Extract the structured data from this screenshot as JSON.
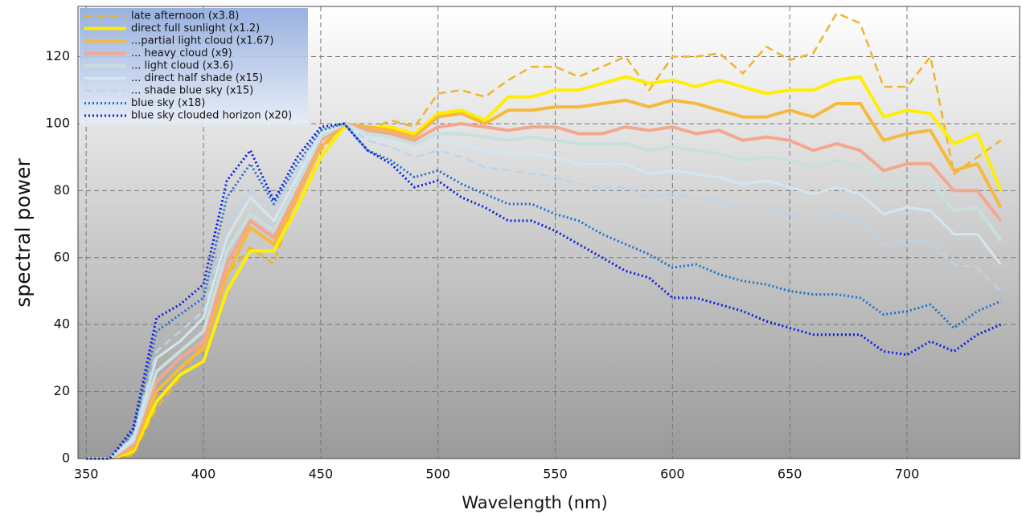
{
  "chart_data": {
    "type": "line",
    "xlabel": "Wavelength (nm)",
    "ylabel": "spectral power",
    "xlim": [
      346.5,
      748
    ],
    "ylim": [
      0,
      135
    ],
    "xticks": [
      350,
      400,
      450,
      500,
      550,
      600,
      650,
      700
    ],
    "yticks": [
      0,
      20,
      40,
      60,
      80,
      100,
      120
    ],
    "grid": true,
    "legend": "upper left",
    "x": [
      350,
      360,
      370,
      380,
      390,
      400,
      410,
      420,
      430,
      440,
      450,
      460,
      470,
      480,
      490,
      500,
      510,
      520,
      530,
      540,
      550,
      560,
      570,
      580,
      590,
      600,
      610,
      620,
      630,
      640,
      650,
      660,
      670,
      680,
      690,
      700,
      710,
      720,
      730,
      740
    ],
    "series": [
      {
        "name": "late afternoon (x3.8)",
        "color": "#f0b429",
        "dash": "dashed",
        "width": 2.5,
        "values": [
          0,
          0,
          1,
          15,
          24,
          35,
          55,
          63,
          58,
          80,
          92,
          100,
          98,
          101,
          99,
          109,
          110,
          108,
          113,
          117,
          117,
          114,
          117,
          120,
          110,
          120,
          120,
          121,
          115,
          123,
          119,
          121,
          133,
          130,
          111,
          111,
          120,
          85,
          90,
          95
        ]
      },
      {
        "name": "direct full sunlight (x1.2)",
        "color": "#ffee00",
        "dash": "solid",
        "width": 4,
        "values": [
          0,
          0,
          2,
          17,
          25,
          29,
          50,
          62,
          62,
          75,
          90,
          99,
          99,
          99,
          97,
          103,
          104,
          101,
          108,
          108,
          110,
          110,
          112,
          114,
          112,
          113,
          111,
          113,
          111,
          109,
          110,
          110,
          113,
          114,
          102,
          104,
          103,
          94,
          97,
          80
        ]
      },
      {
        "name": "...partial light cloud (x1.67)",
        "color": "#f6b93b",
        "dash": "solid",
        "width": 4,
        "values": [
          0,
          0,
          3,
          20,
          27,
          33,
          55,
          69,
          64,
          78,
          93,
          100,
          99,
          98,
          96,
          102,
          103,
          100,
          104,
          104,
          105,
          105,
          106,
          107,
          105,
          107,
          106,
          104,
          102,
          102,
          104,
          102,
          106,
          106,
          95,
          97,
          98,
          86,
          88,
          75
        ]
      },
      {
        "name": "... heavy cloud (x9)",
        "color": "#f4a78e",
        "dash": "solid",
        "width": 4,
        "values": [
          0,
          0,
          4,
          23,
          30,
          35,
          58,
          71,
          66,
          80,
          95,
          100,
          98,
          97,
          95,
          99,
          100,
          99,
          98,
          99,
          99,
          97,
          97,
          99,
          98,
          99,
          97,
          98,
          95,
          96,
          95,
          92,
          94,
          92,
          86,
          88,
          88,
          80,
          80,
          71
        ]
      },
      {
        "name": "... light cloud (x3.6)",
        "color": "#c8e0dc",
        "dash": "solid",
        "width": 4,
        "values": [
          0,
          0,
          5,
          26,
          32,
          38,
          62,
          73,
          68,
          82,
          96,
          100,
          97,
          96,
          94,
          97,
          97,
          96,
          95,
          96,
          95,
          94,
          94,
          94,
          92,
          93,
          92,
          91,
          89,
          90,
          89,
          87,
          89,
          87,
          82,
          83,
          83,
          74,
          75,
          65
        ]
      },
      {
        "name": "... direct half shade (x15)",
        "color": "#d4e6f0",
        "dash": "solid",
        "width": 3,
        "values": [
          0,
          0,
          6,
          30,
          35,
          42,
          66,
          78,
          71,
          84,
          97,
          100,
          96,
          95,
          92,
          95,
          94,
          92,
          91,
          91,
          90,
          88,
          88,
          88,
          85,
          86,
          85,
          84,
          82,
          83,
          81,
          79,
          81,
          79,
          73,
          75,
          74,
          67,
          67,
          58
        ]
      },
      {
        "name": "... shade blue sky (x15)",
        "color": "#bcd4ea",
        "dash": "dashed",
        "width": 2.5,
        "values": [
          0,
          0,
          7,
          32,
          38,
          44,
          70,
          80,
          74,
          86,
          98,
          100,
          95,
          93,
          90,
          92,
          90,
          87,
          86,
          85,
          84,
          82,
          81,
          81,
          78,
          79,
          78,
          77,
          75,
          75,
          73,
          71,
          73,
          71,
          64,
          65,
          65,
          58,
          57,
          50
        ]
      },
      {
        "name": "blue sky (x18)",
        "color": "#1f6fd0",
        "dash": "dotted",
        "width": 3,
        "values": [
          0,
          0,
          8,
          38,
          43,
          48,
          78,
          88,
          76,
          88,
          98,
          100,
          92,
          89,
          84,
          86,
          82,
          79,
          76,
          76,
          73,
          71,
          67,
          64,
          61,
          57,
          58,
          55,
          53,
          52,
          50,
          49,
          49,
          48,
          43,
          44,
          46,
          39,
          44,
          47
        ]
      },
      {
        "name": "blue sky clouded horizon (x20)",
        "color": "#0a1ee0",
        "dash": "dotted",
        "width": 3,
        "values": [
          0,
          0,
          9,
          42,
          46,
          52,
          83,
          92,
          77,
          90,
          99,
          100,
          92,
          88,
          81,
          83,
          78,
          75,
          71,
          71,
          68,
          64,
          60,
          56,
          54,
          48,
          48,
          46,
          44,
          41,
          39,
          37,
          37,
          37,
          32,
          31,
          35,
          32,
          37,
          40
        ]
      }
    ]
  }
}
